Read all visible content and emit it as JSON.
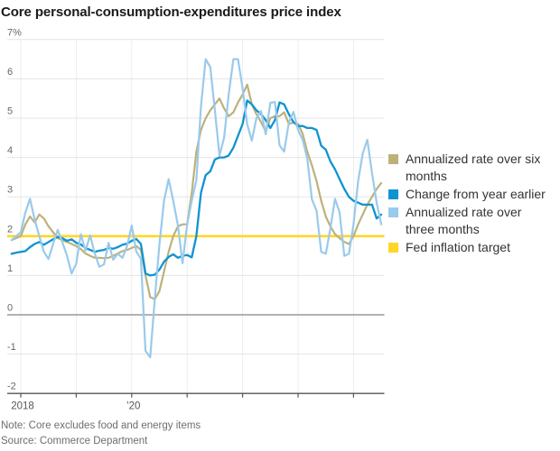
{
  "title": "Core personal-consumption-expenditures price index",
  "note": "Note: Core excludes food and energy items",
  "source": "Source: Commerce Department",
  "colors": {
    "six_month": "#bdb17b",
    "yoy": "#0f93d2",
    "three_month": "#9acaec",
    "fed_target": "#ffd626",
    "gridline": "#e4e4e4",
    "year_gridline": "#ededed",
    "zero_line": "#999999",
    "axis_line": "#555555",
    "axis_text": "#666666",
    "title_text": "#1a1a1a"
  },
  "legend": {
    "items": [
      {
        "key": "six_month",
        "lines": [
          "Annualized rate over six",
          "months"
        ]
      },
      {
        "key": "yoy",
        "lines": [
          "Change from year earlier"
        ]
      },
      {
        "key": "three_month",
        "lines": [
          "Annualized rate over",
          "three months"
        ]
      },
      {
        "key": "fed_target",
        "lines": [
          "Fed inflation target"
        ]
      }
    ]
  },
  "chart_data": {
    "type": "line",
    "title": "Core personal-consumption-expenditures price index",
    "months_start": "2017-11",
    "months_end": "2024-07",
    "y_axis": {
      "min": -2,
      "max": 7,
      "step": 1,
      "tick_labels": [
        "7%",
        "6",
        "5",
        "4",
        "3",
        "2",
        "1",
        "0",
        "-1",
        "-2"
      ],
      "tick_values": [
        7,
        6,
        5,
        4,
        3,
        2,
        1,
        0,
        -1,
        -2
      ]
    },
    "x_axis": {
      "ticks": [
        {
          "year": 2018,
          "label": "2018"
        },
        {
          "year": 2019,
          "label": ""
        },
        {
          "year": 2020,
          "label": "’20"
        },
        {
          "year": 2021,
          "label": ""
        },
        {
          "year": 2022,
          "label": ""
        },
        {
          "year": 2023,
          "label": ""
        },
        {
          "year": 2024,
          "label": ""
        }
      ]
    },
    "series": [
      {
        "key": "six_month",
        "name": "Annualized rate over six months",
        "values": [
          1.9,
          1.95,
          2.0,
          2.3,
          2.5,
          2.35,
          2.55,
          2.45,
          2.25,
          2.1,
          1.95,
          1.9,
          1.85,
          1.8,
          1.75,
          1.67,
          1.56,
          1.5,
          1.45,
          1.45,
          1.44,
          1.45,
          1.5,
          1.56,
          1.62,
          1.65,
          1.7,
          1.75,
          1.65,
          1.0,
          0.45,
          0.4,
          0.6,
          1.1,
          1.6,
          2.0,
          2.25,
          2.3,
          2.3,
          3.1,
          4.15,
          4.7,
          5.0,
          5.2,
          5.35,
          5.5,
          5.25,
          5.05,
          5.15,
          5.4,
          5.6,
          5.85,
          5.35,
          5.1,
          4.9,
          4.66,
          5.0,
          5.05,
          5.05,
          5.15,
          4.85,
          4.89,
          4.85,
          4.6,
          4.15,
          3.8,
          3.4,
          2.9,
          2.5,
          2.25,
          2.05,
          1.95,
          1.85,
          1.8,
          2.0,
          2.3,
          2.55,
          2.8,
          3.0,
          3.2,
          3.35
        ]
      },
      {
        "key": "yoy",
        "name": "Change from year earlier",
        "values": [
          1.55,
          1.58,
          1.6,
          1.62,
          1.72,
          1.8,
          1.85,
          1.78,
          1.85,
          1.92,
          1.98,
          1.95,
          1.88,
          1.92,
          1.83,
          1.79,
          1.7,
          1.65,
          1.6,
          1.63,
          1.65,
          1.7,
          1.68,
          1.72,
          1.78,
          1.81,
          1.88,
          1.93,
          1.8,
          1.05,
          1.0,
          1.02,
          1.15,
          1.35,
          1.47,
          1.54,
          1.45,
          1.5,
          1.52,
          1.46,
          2.0,
          3.1,
          3.55,
          3.65,
          3.95,
          4.0,
          4.0,
          4.05,
          4.25,
          4.55,
          4.85,
          5.45,
          5.35,
          5.2,
          5.1,
          4.95,
          4.75,
          4.95,
          5.4,
          5.35,
          5.1,
          4.9,
          4.8,
          4.8,
          4.75,
          4.75,
          4.7,
          4.3,
          4.2,
          3.9,
          3.7,
          3.45,
          3.2,
          3.0,
          2.9,
          2.85,
          2.8,
          2.8,
          2.8,
          2.45,
          2.55
        ]
      },
      {
        "key": "three_month",
        "name": "Annualized rate over three months",
        "values": [
          1.9,
          2.0,
          2.1,
          2.6,
          2.95,
          2.43,
          2.0,
          1.6,
          1.42,
          1.8,
          2.16,
          1.85,
          1.5,
          1.05,
          1.3,
          2.05,
          1.63,
          2.02,
          1.56,
          1.22,
          1.28,
          1.83,
          1.4,
          1.55,
          1.45,
          1.75,
          2.27,
          1.61,
          1.42,
          -0.92,
          -1.08,
          0.41,
          1.79,
          2.9,
          3.45,
          2.9,
          2.27,
          1.31,
          2.3,
          2.9,
          3.42,
          5.3,
          6.5,
          6.3,
          5.2,
          4.05,
          4.5,
          5.6,
          6.5,
          6.5,
          5.76,
          4.84,
          4.43,
          5.0,
          5.18,
          4.59,
          5.39,
          5.41,
          4.31,
          4.15,
          4.89,
          5.16,
          4.7,
          4.45,
          3.97,
          2.94,
          2.64,
          1.6,
          1.55,
          2.2,
          2.95,
          2.6,
          1.5,
          1.55,
          2.3,
          3.4,
          4.1,
          4.45,
          3.6,
          2.85,
          2.3
        ]
      },
      {
        "key": "fed_target",
        "name": "Fed inflation target",
        "constant": 2.0
      }
    ]
  }
}
